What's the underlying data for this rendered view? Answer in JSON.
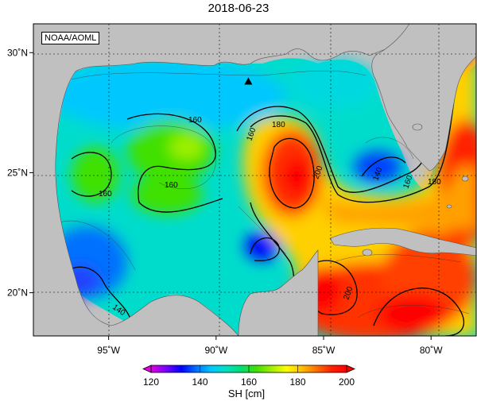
{
  "title": "2018-06-23",
  "agency": "NOAA/AOML",
  "colorbar": {
    "label": "SH [cm]",
    "ticks": [
      "120",
      "140",
      "160",
      "180",
      "200"
    ],
    "min": 120,
    "max": 200,
    "colors": [
      "#e000e0",
      "#7a00ff",
      "#0000ff",
      "#0070ff",
      "#00c8ff",
      "#00e0c0",
      "#00e070",
      "#40e000",
      "#a0f000",
      "#ffff00",
      "#ffc000",
      "#ff7000",
      "#ff2000",
      "#ff0000"
    ]
  },
  "axes": {
    "lon_ticks": [
      {
        "value": -95,
        "label": "95˚W"
      },
      {
        "value": -90,
        "label": "90˚W"
      },
      {
        "value": -85,
        "label": "85˚W"
      },
      {
        "value": -80,
        "label": "80˚W"
      }
    ],
    "lat_ticks": [
      {
        "value": 30,
        "label": "30˚N"
      },
      {
        "value": 25,
        "label": "25˚N"
      },
      {
        "value": 20,
        "label": "20˚N"
      }
    ],
    "lon_range": [
      -98.5,
      -77.9
    ],
    "lat_range": [
      18.2,
      31.2
    ]
  },
  "contour_labels": [
    "160",
    "160",
    "160",
    "160",
    "180",
    "200",
    "140",
    "160",
    "180",
    "200",
    "140"
  ],
  "marker": {
    "name": "triangle",
    "lon": -88.5,
    "lat": 28.8
  },
  "land_color": "#c0c0c0"
}
